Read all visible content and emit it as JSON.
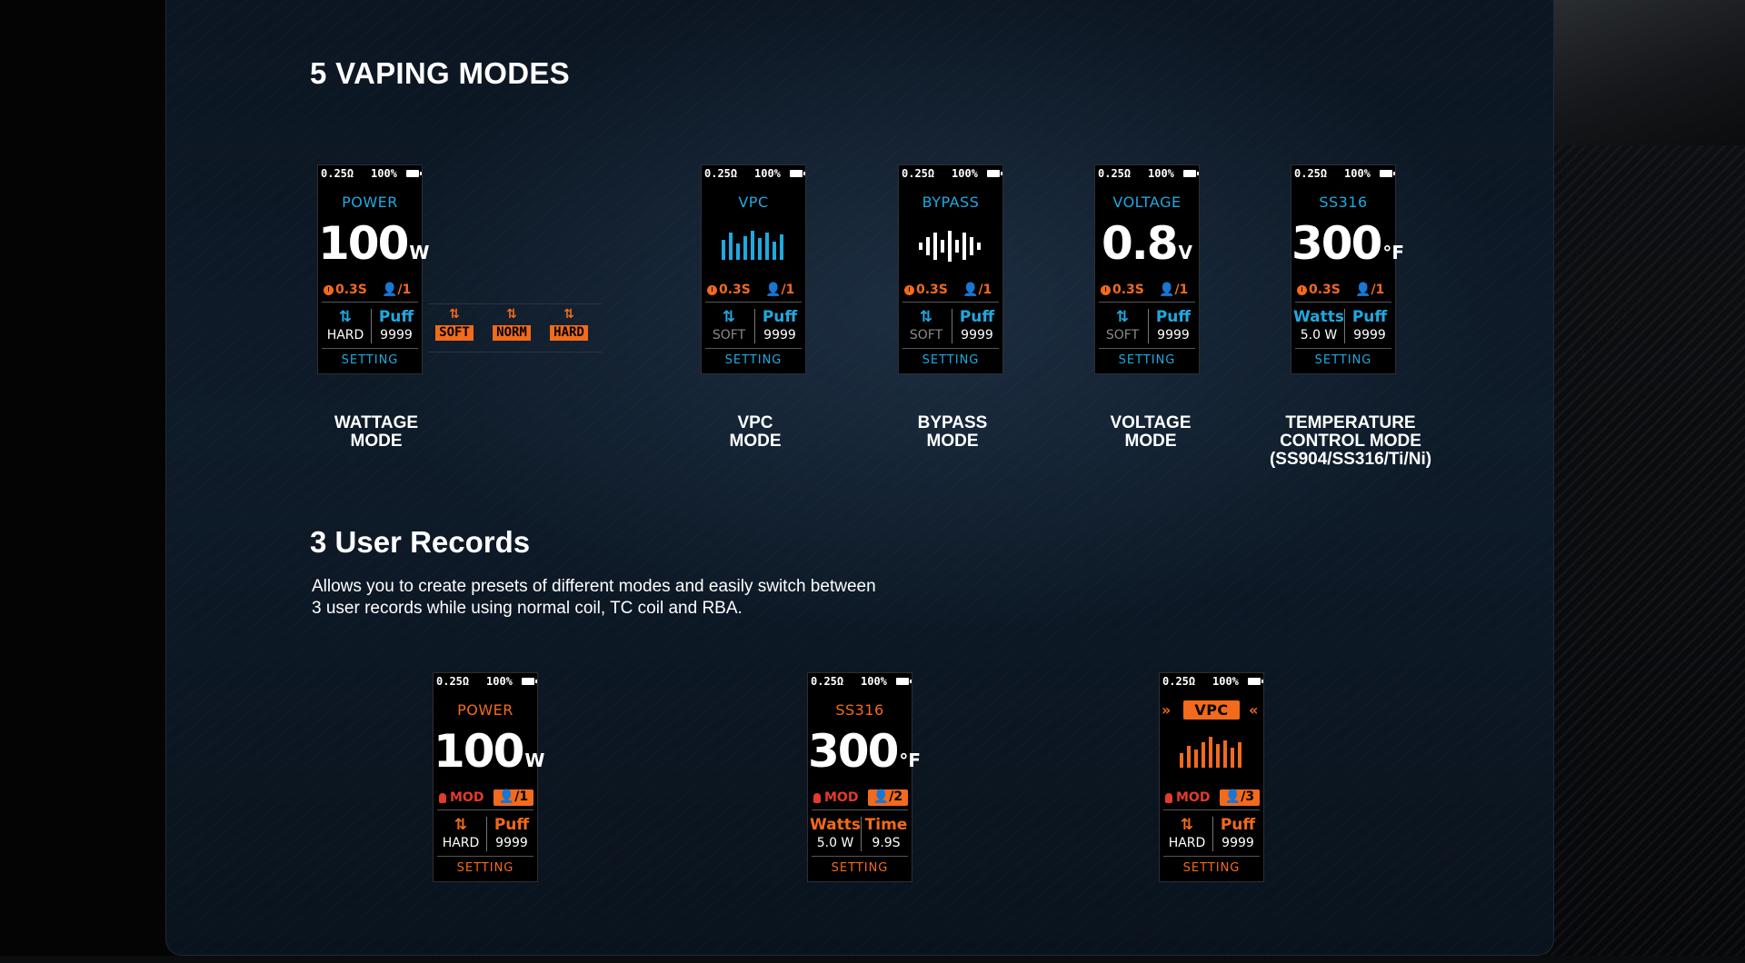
{
  "headings": {
    "modes_title": "5 VAPING MODES",
    "records_title": "3 User Records",
    "records_desc_line1": "Allows you to create presets of different modes and easily switch between",
    "records_desc_line2": "3 user records while using normal coil, TC coil and RBA."
  },
  "colors": {
    "blue": "#1fa9e1",
    "orange": "#f26a1b",
    "red": "#e53a2a"
  },
  "power_levels": [
    {
      "arrows": "⇅",
      "label": "SOFT"
    },
    {
      "arrows": "⇅",
      "label": "NORM"
    },
    {
      "arrows": "⇅",
      "label": "HARD"
    }
  ],
  "modes": [
    {
      "ohm": "0.25Ω",
      "battery": "100%",
      "name": "POWER",
      "value": "100",
      "unit": "W",
      "time": "0.3S",
      "user": "/1",
      "left_top": "⇅",
      "left_bot": "HARD",
      "right_top": "Puff",
      "right_bot": "9999",
      "setting": "SETTING",
      "caption_1": "WATTAGE",
      "caption_2": "MODE",
      "caption_3": ""
    },
    {
      "ohm": "0.25Ω",
      "battery": "100%",
      "name": "VPC",
      "value": "",
      "unit": "",
      "time": "0.3S",
      "user": "/1",
      "left_top": "⇅",
      "left_bot": "SOFT",
      "right_top": "Puff",
      "right_bot": "9999",
      "setting": "SETTING",
      "caption_1": "VPC",
      "caption_2": "MODE",
      "caption_3": ""
    },
    {
      "ohm": "0.25Ω",
      "battery": "100%",
      "name": "BYPASS",
      "value": "",
      "unit": "",
      "time": "0.3S",
      "user": "/1",
      "left_top": "⇅",
      "left_bot": "SOFT",
      "right_top": "Puff",
      "right_bot": "9999",
      "setting": "SETTING",
      "caption_1": "BYPASS",
      "caption_2": "MODE",
      "caption_3": ""
    },
    {
      "ohm": "0.25Ω",
      "battery": "100%",
      "name": "VOLTAGE",
      "value": "0.8",
      "unit": "V",
      "time": "0.3S",
      "user": "/1",
      "left_top": "⇅",
      "left_bot": "SOFT",
      "right_top": "Puff",
      "right_bot": "9999",
      "setting": "SETTING",
      "caption_1": "VOLTAGE",
      "caption_2": "MODE",
      "caption_3": ""
    },
    {
      "ohm": "0.25Ω",
      "battery": "100%",
      "name": "SS316",
      "value": "300",
      "unit": "°F",
      "time": "0.3S",
      "user": "/1",
      "left_top": "Watts",
      "left_bot": "5.0 W",
      "right_top": "Puff",
      "right_bot": "9999",
      "setting": "SETTING",
      "caption_1": "TEMPERATURE",
      "caption_2": "CONTROL MODE",
      "caption_3": "(SS904/SS316/Ti/Ni)"
    }
  ],
  "records": [
    {
      "ohm": "0.25Ω",
      "battery": "100%",
      "name": "POWER",
      "value": "100",
      "unit": "W",
      "mod": "MOD",
      "user": "/1",
      "left_top": "⇅",
      "left_bot": "HARD",
      "right_top": "Puff",
      "right_bot": "9999",
      "setting": "SETTING"
    },
    {
      "ohm": "0.25Ω",
      "battery": "100%",
      "name": "SS316",
      "value": "300",
      "unit": "°F",
      "mod": "MOD",
      "user": "/2",
      "left_top": "Watts",
      "left_bot": "5.0 W",
      "right_top": "Time",
      "right_bot": "9.9S",
      "setting": "SETTING"
    },
    {
      "ohm": "0.25Ω",
      "battery": "100%",
      "name": "VPC",
      "value": "",
      "unit": "",
      "mod": "MOD",
      "user": "/3",
      "left_top": "⇅",
      "left_bot": "HARD",
      "right_top": "Puff",
      "right_bot": "9999",
      "setting": "SETTING"
    }
  ]
}
